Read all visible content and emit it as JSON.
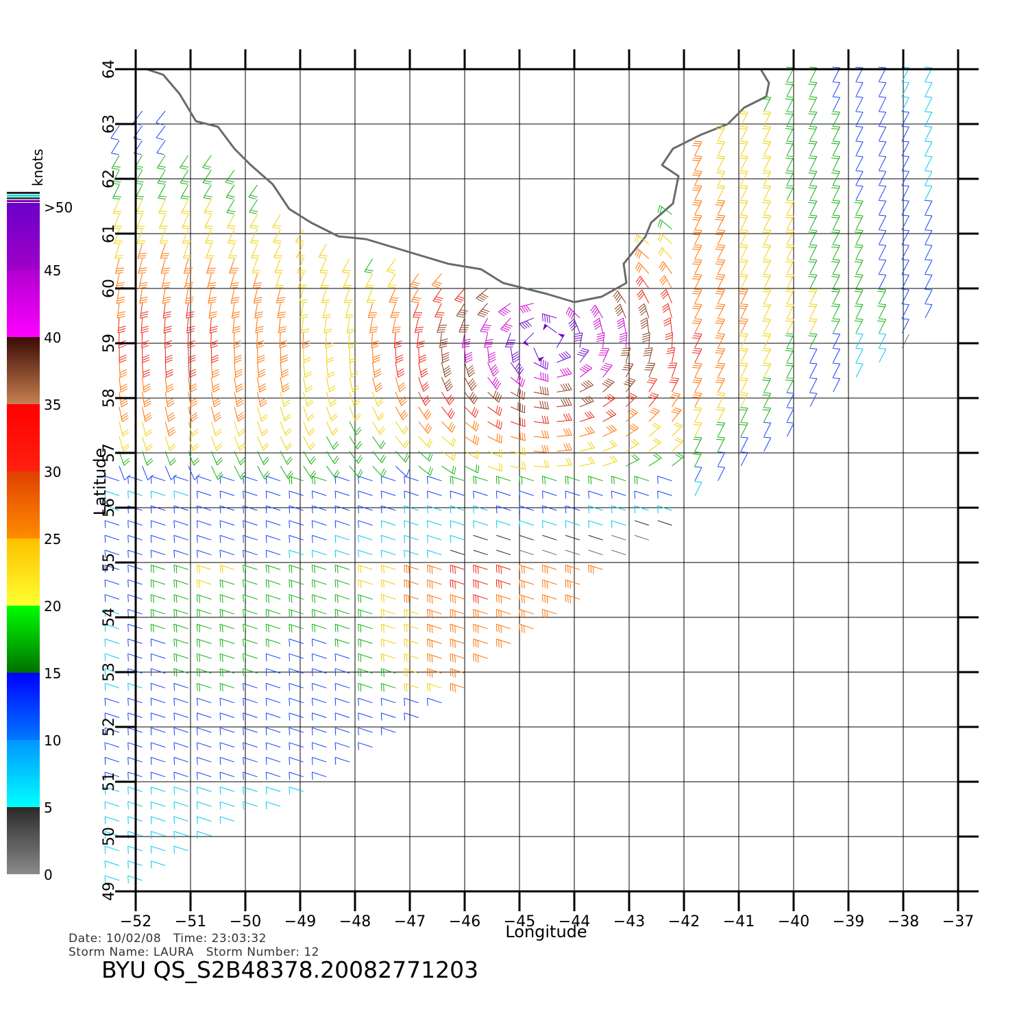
{
  "chart_data": {
    "type": "scatter",
    "title": "",
    "xlabel": "Longitude",
    "ylabel": "Latitude",
    "xlim": [
      -52,
      -37
    ],
    "ylim": [
      49,
      64
    ],
    "x_ticks": [
      -52,
      -51,
      -50,
      -49,
      -48,
      -47,
      -46,
      -45,
      -44,
      -43,
      -42,
      -41,
      -40,
      -39,
      -38,
      -37
    ],
    "y_ticks": [
      49,
      50,
      51,
      52,
      53,
      54,
      55,
      56,
      57,
      58,
      59,
      60,
      61,
      62,
      63,
      64
    ],
    "grid": true,
    "colorbar": {
      "label": "knots",
      "ticks": [
        "0",
        "5",
        "10",
        "15",
        "20",
        "25",
        "30",
        "35",
        "40",
        "45",
        ">50"
      ],
      "bands": [
        {
          "min": 0,
          "max": 5,
          "from": "#8a8a8a",
          "to": "#2a2a2a"
        },
        {
          "min": 5,
          "max": 10,
          "from": "#00ffff",
          "to": "#0096ff"
        },
        {
          "min": 10,
          "max": 15,
          "from": "#0078ff",
          "to": "#0000ff"
        },
        {
          "min": 15,
          "max": 20,
          "from": "#007000",
          "to": "#00ff00"
        },
        {
          "min": 20,
          "max": 25,
          "from": "#ffff30",
          "to": "#ffc000"
        },
        {
          "min": 25,
          "max": 30,
          "from": "#ff8c00",
          "to": "#e04000"
        },
        {
          "min": 30,
          "max": 35,
          "from": "#ff2010",
          "to": "#ff0000"
        },
        {
          "min": 35,
          "max": 40,
          "from": "#c88050",
          "to": "#3a0a05"
        },
        {
          "min": 40,
          "max": 45,
          "from": "#ff00ff",
          "to": "#b000d0"
        },
        {
          "min": 45,
          "max": 50,
          "from": "#a000c8",
          "to": "#6a00c8"
        }
      ]
    },
    "coastline_greenland_west": [
      [
        -51.8,
        64
      ],
      [
        -51.5,
        63.9
      ],
      [
        -51.2,
        63.55
      ],
      [
        -50.9,
        63.05
      ],
      [
        -50.5,
        62.95
      ],
      [
        -50.2,
        62.55
      ],
      [
        -49.9,
        62.25
      ],
      [
        -49.5,
        61.9
      ],
      [
        -49.2,
        61.45
      ],
      [
        -48.8,
        61.2
      ],
      [
        -48.3,
        60.95
      ],
      [
        -47.8,
        60.9
      ],
      [
        -47.3,
        60.75
      ],
      [
        -46.8,
        60.6
      ],
      [
        -46.3,
        60.45
      ],
      [
        -45.7,
        60.35
      ],
      [
        -45.3,
        60.1
      ],
      [
        -44.9,
        60.0
      ],
      [
        -44.5,
        59.9
      ],
      [
        -44.0,
        59.75
      ],
      [
        -43.5,
        59.85
      ],
      [
        -43.05,
        60.1
      ],
      [
        -43.1,
        60.45
      ],
      [
        -42.7,
        60.95
      ],
      [
        -42.6,
        61.2
      ],
      [
        -42.2,
        61.55
      ],
      [
        -42.1,
        62.05
      ],
      [
        -42.4,
        62.25
      ],
      [
        -42.2,
        62.55
      ],
      [
        -41.7,
        62.8
      ],
      [
        -41.2,
        63.0
      ],
      [
        -40.9,
        63.3
      ],
      [
        -40.5,
        63.5
      ],
      [
        -40.45,
        63.75
      ],
      [
        -40.6,
        64
      ]
    ],
    "series": [
      {
        "name": "wind-vectors",
        "units": "knots",
        "speed_range": [
          0,
          55
        ],
        "swath": "ascending, diagonal from southwest to northeast"
      }
    ],
    "notes": []
  },
  "info": {
    "date_label": "Date:",
    "date": "10/02/08",
    "time_label": "Time:",
    "time": "23:03:32",
    "storm_name_label": "Storm Name:",
    "storm_name": "LAURA",
    "storm_number_label": "Storm Number:",
    "storm_number": "12",
    "file_id": "BYU QS_S2B48378.20082771203"
  }
}
